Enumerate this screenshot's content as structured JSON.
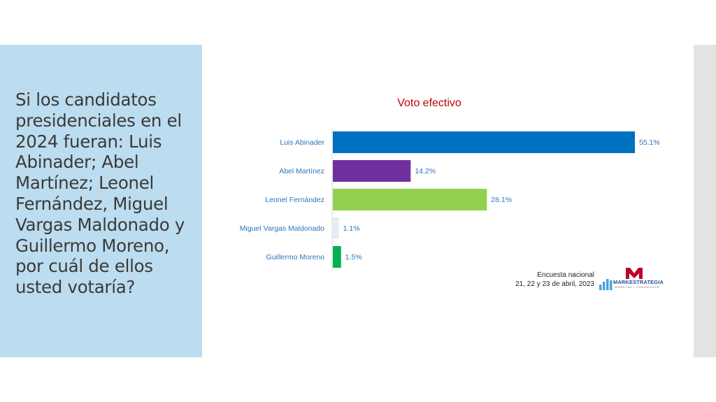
{
  "question": "Si los candidatos presidenciales en el 2024 fueran: Luis Abinader; Abel Martínez; Leonel Fernández, Miguel Vargas Maldonado y Guillermo Moreno, por cuál de ellos usted votaría?",
  "source": {
    "line1": "Encuesta nacional",
    "line2": "21, 22 y 23 de abril, 2023"
  },
  "logo": {
    "name": "MARKESTRATEGIA",
    "tagline": "MARKETING Y COMUNICACION"
  },
  "chart_data": {
    "type": "bar",
    "orientation": "horizontal",
    "title": "Voto efectivo",
    "categories": [
      "Luis Abinader",
      "Abel Martínez",
      "Leonel Fernández",
      "Miguel Vargas Maldonado",
      "Guillermo Moreno"
    ],
    "values": [
      55.1,
      14.2,
      28.1,
      1.1,
      1.5
    ],
    "labels": [
      "55.1%",
      "14.2%",
      "28.1%",
      "1.1%",
      "1.5%"
    ],
    "colors": [
      "#0070c0",
      "#7030a0",
      "#92d050",
      "#e7ecf0",
      "#00b050"
    ],
    "xlim": [
      0,
      55.1
    ],
    "grid": false,
    "legend": "none"
  }
}
